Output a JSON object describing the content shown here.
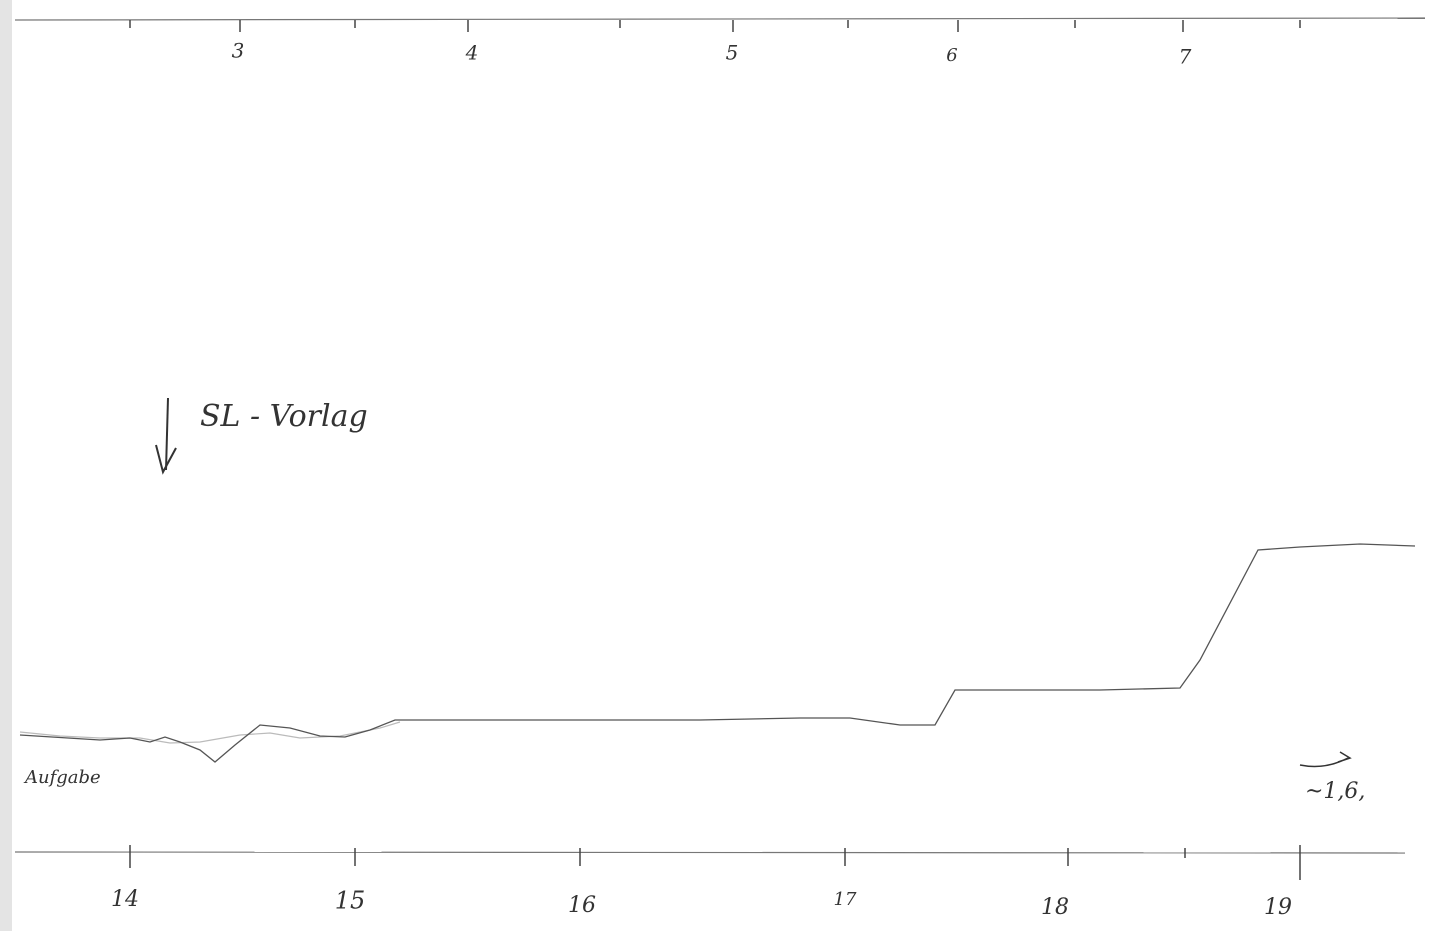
{
  "top_scale": {
    "labels": [
      "3",
      "4",
      "5",
      "6",
      "7"
    ]
  },
  "bottom_scale": {
    "labels": [
      "14",
      "15",
      "16",
      "17",
      "18",
      "19"
    ]
  },
  "annotations": {
    "marker": "SL - Vorlag",
    "note_left": "Aufgabe",
    "note_right": "~1,6,"
  }
}
